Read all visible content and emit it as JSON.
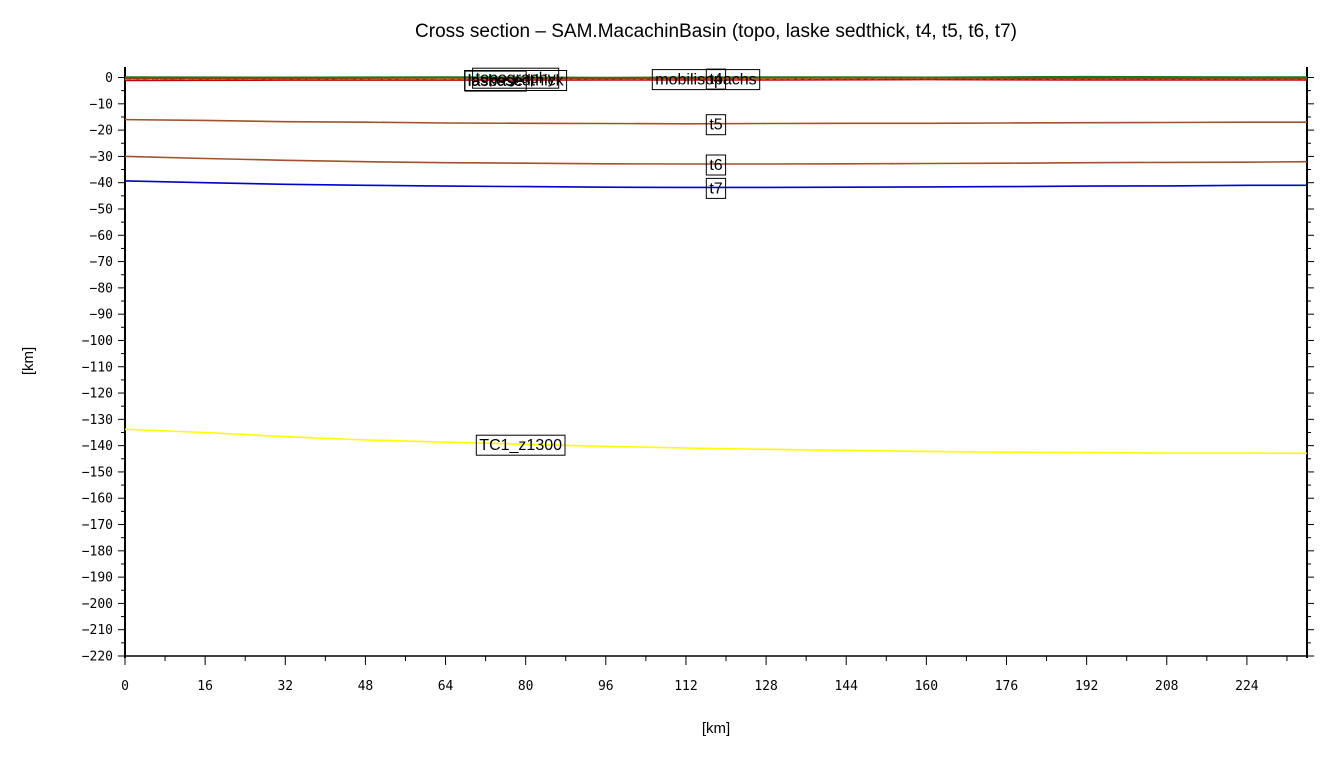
{
  "chart_data": {
    "type": "line",
    "title": "Cross section – SAM.MacachinBasin (topo, laske sedthick, t4, t5, t6, t7)",
    "xlabel": "[km]",
    "ylabel": "[km]",
    "xlim": [
      0,
      236
    ],
    "ylim": [
      -220,
      4
    ],
    "x_ticks": [
      0,
      16,
      32,
      48,
      64,
      80,
      96,
      112,
      128,
      144,
      160,
      176,
      192,
      208,
      224
    ],
    "y_ticks": [
      0,
      -10,
      -20,
      -30,
      -40,
      -50,
      -60,
      -70,
      -80,
      -90,
      -100,
      -110,
      -120,
      -130,
      -140,
      -150,
      -160,
      -170,
      -180,
      -190,
      -200,
      -210,
      -220
    ],
    "grid": false,
    "legend": "none",
    "series": [
      {
        "name": "topography",
        "label_at_x": 78,
        "color": "#1a7a1a",
        "dash": "",
        "x": [
          0,
          32,
          64,
          96,
          128,
          160,
          192,
          224,
          236
        ],
        "y": [
          0.2,
          0.1,
          0.2,
          0.0,
          0.2,
          0.1,
          0.3,
          0.2,
          0.2
        ]
      },
      {
        "name": "laskesedthick",
        "label_at_x": 78,
        "color": "#ff4400",
        "dash": "6,3",
        "x": [
          0,
          32,
          64,
          96,
          128,
          160,
          192,
          224,
          236
        ],
        "y": [
          -0.9,
          -0.8,
          -0.8,
          -0.7,
          -0.7,
          -0.6,
          -0.7,
          -0.7,
          -0.7
        ]
      },
      {
        "name": "lasbase",
        "label_at_x": 74,
        "color": "#cc0000",
        "dash": "",
        "x": [
          0,
          32,
          64,
          96,
          128,
          160,
          192,
          224,
          236
        ],
        "y": [
          -1.1,
          -1.0,
          -1.0,
          -0.9,
          -0.9,
          -0.8,
          -0.9,
          -0.9,
          -0.9
        ]
      },
      {
        "name": "mobilisopachs",
        "label_at_x": 116,
        "color": "#f0b400",
        "dash": "4,3",
        "x": [
          0,
          32,
          64,
          96,
          128,
          160,
          192,
          224,
          236
        ],
        "y": [
          -0.5,
          -0.4,
          -0.4,
          -0.4,
          -0.4,
          -0.3,
          -0.4,
          -0.4,
          -0.4
        ]
      },
      {
        "name": "t4",
        "label_at_x": 118,
        "color": "#8b4513",
        "dash": "",
        "x": [
          0,
          32,
          64,
          96,
          128,
          160,
          192,
          224,
          236
        ],
        "y": [
          -0.3,
          -0.3,
          -0.2,
          -0.3,
          -0.2,
          -0.2,
          -0.3,
          -0.3,
          -0.3
        ]
      },
      {
        "name": "t5",
        "label_at_x": 118,
        "color": "#a0522d",
        "dash": "",
        "x": [
          0,
          16,
          32,
          48,
          64,
          80,
          96,
          112,
          128,
          144,
          160,
          176,
          192,
          208,
          224,
          236
        ],
        "y": [
          -16.0,
          -16.3,
          -16.8,
          -17.0,
          -17.3,
          -17.4,
          -17.5,
          -17.6,
          -17.5,
          -17.4,
          -17.4,
          -17.3,
          -17.2,
          -17.1,
          -17.0,
          -17.0
        ]
      },
      {
        "name": "t6",
        "label_at_x": 118,
        "color": "#a0522d",
        "dash": "",
        "x": [
          0,
          16,
          32,
          48,
          64,
          80,
          96,
          112,
          128,
          144,
          160,
          176,
          192,
          208,
          224,
          236
        ],
        "y": [
          -30.0,
          -30.8,
          -31.5,
          -32.0,
          -32.4,
          -32.6,
          -32.8,
          -32.9,
          -32.9,
          -32.8,
          -32.7,
          -32.6,
          -32.4,
          -32.3,
          -32.2,
          -32.0
        ]
      },
      {
        "name": "t7",
        "label_at_x": 118,
        "color": "#0000cc",
        "dash": "",
        "x": [
          0,
          16,
          32,
          48,
          64,
          80,
          96,
          112,
          128,
          144,
          160,
          176,
          192,
          208,
          224,
          236
        ],
        "y": [
          -39.3,
          -40.0,
          -40.6,
          -41.0,
          -41.3,
          -41.5,
          -41.7,
          -41.8,
          -41.8,
          -41.7,
          -41.6,
          -41.5,
          -41.3,
          -41.2,
          -41.0,
          -41.0
        ]
      },
      {
        "name": "TC1_z1300",
        "label_at_x": 79,
        "color": "#ffff00",
        "dash": "",
        "x": [
          0,
          16,
          32,
          48,
          64,
          80,
          96,
          112,
          128,
          144,
          160,
          176,
          192,
          208,
          224,
          236
        ],
        "y": [
          -133.8,
          -135.0,
          -136.6,
          -137.8,
          -138.7,
          -139.5,
          -140.3,
          -140.9,
          -141.4,
          -141.8,
          -142.2,
          -142.5,
          -142.7,
          -142.8,
          -142.8,
          -142.9
        ]
      }
    ]
  }
}
